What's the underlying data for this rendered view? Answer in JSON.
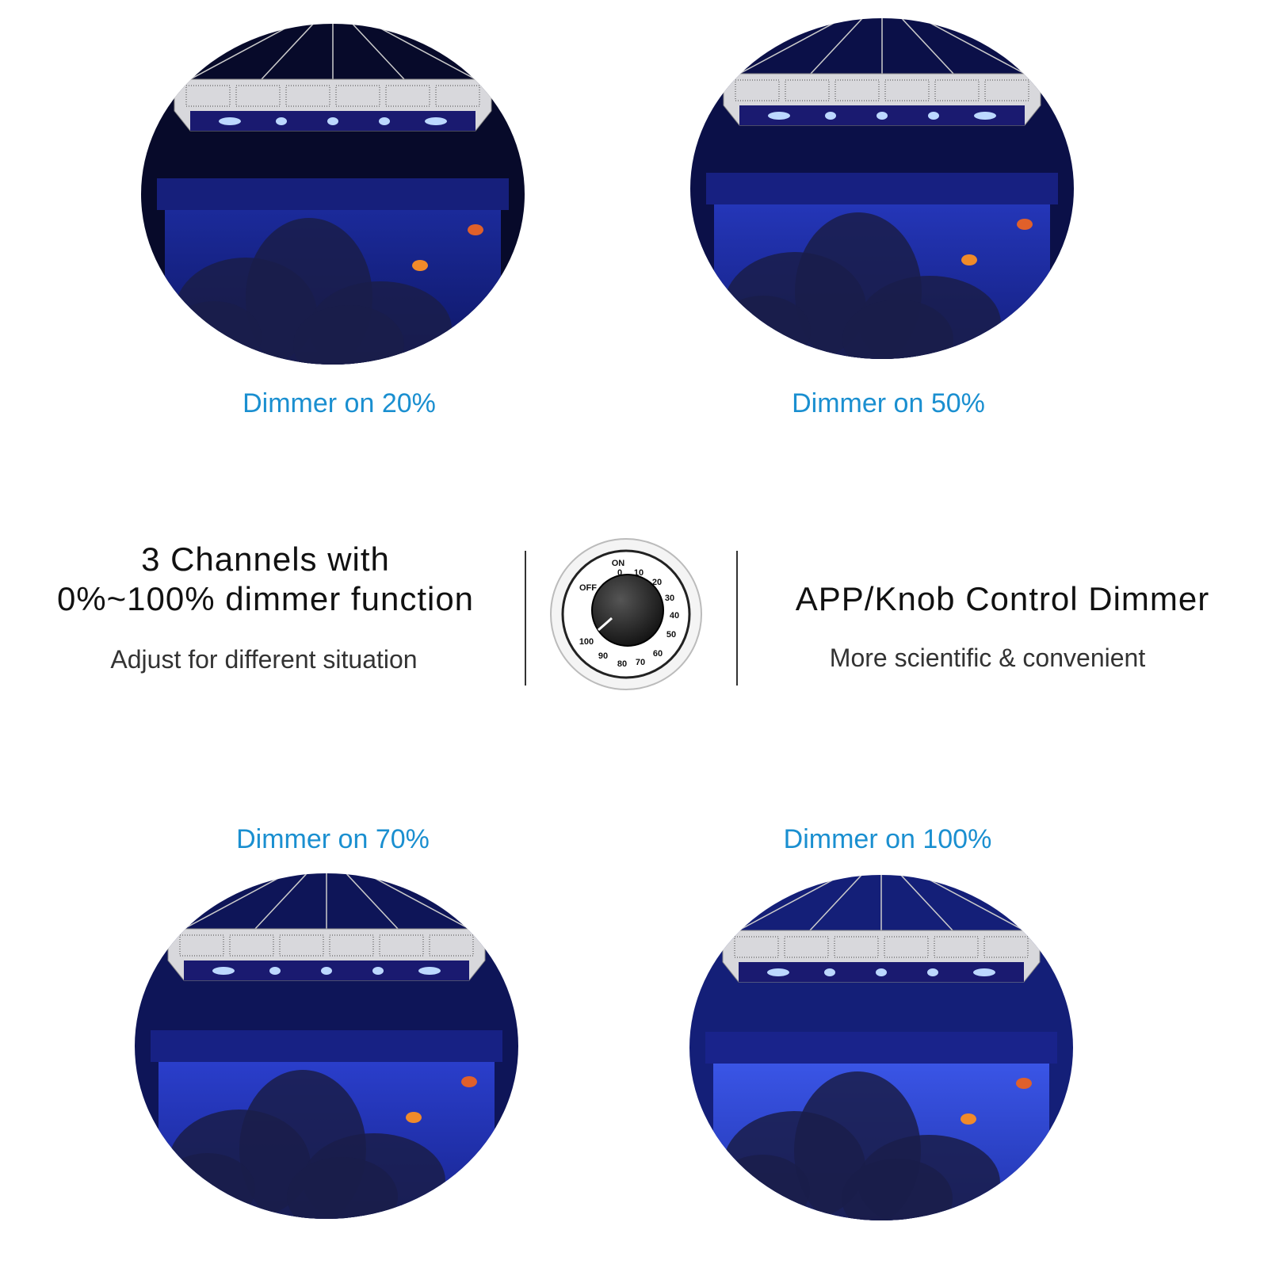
{
  "panels": [
    {
      "caption": "Dimmer on 20%"
    },
    {
      "caption": "Dimmer on 50%"
    },
    {
      "caption": "Dimmer on 70%"
    },
    {
      "caption": "Dimmer on 100%"
    }
  ],
  "left": {
    "title_lines": [
      "3 Channels with",
      "0%~100% dimmer function"
    ],
    "subtitle": "Adjust for different situation"
  },
  "knob": {
    "labels": [
      "ON",
      "OFF",
      "0",
      "10",
      "20",
      "30",
      "40",
      "50",
      "60",
      "70",
      "80",
      "90",
      "100"
    ]
  },
  "right": {
    "title": "APP/Knob Control Dimmer",
    "subtitle": "More scientific & convenient"
  }
}
